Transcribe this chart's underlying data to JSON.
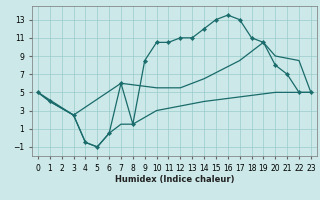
{
  "xlabel": "Humidex (Indice chaleur)",
  "xlim": [
    -0.5,
    23.5
  ],
  "ylim": [
    -2,
    14.5
  ],
  "xticks": [
    0,
    1,
    2,
    3,
    4,
    5,
    6,
    7,
    8,
    9,
    10,
    11,
    12,
    13,
    14,
    15,
    16,
    17,
    18,
    19,
    20,
    21,
    22,
    23
  ],
  "yticks": [
    -1,
    1,
    3,
    5,
    7,
    9,
    11,
    13
  ],
  "background_color": "#cce8e8",
  "grid_color": "#99cccc",
  "line_color": "#1a6b6b",
  "line1_x": [
    0,
    1,
    3,
    4,
    5,
    6,
    7,
    8,
    9,
    10,
    11,
    12,
    13,
    14,
    15,
    16,
    17,
    18,
    19,
    20,
    21,
    22,
    23
  ],
  "line1_y": [
    5,
    4,
    2.5,
    -0.5,
    -1.0,
    0.5,
    6.0,
    1.5,
    8.5,
    10.5,
    10.5,
    11.0,
    11.0,
    12.0,
    13.0,
    13.5,
    13.0,
    11.0,
    10.5,
    8.0,
    7.0,
    5.0,
    5.0
  ],
  "line2_x": [
    0,
    1,
    3,
    4,
    5,
    6,
    7,
    8,
    10,
    12,
    14,
    17,
    20,
    23
  ],
  "line2_y": [
    5,
    4,
    2.5,
    -0.5,
    -1.0,
    0.5,
    1.5,
    1.5,
    3.0,
    3.5,
    4.0,
    4.5,
    5.0,
    5.0
  ],
  "line3_x": [
    0,
    3,
    7,
    10,
    12,
    14,
    17,
    19,
    20,
    22,
    23
  ],
  "line3_y": [
    5,
    2.5,
    6.0,
    5.5,
    5.5,
    6.5,
    8.5,
    10.5,
    9.0,
    8.5,
    5.0
  ]
}
